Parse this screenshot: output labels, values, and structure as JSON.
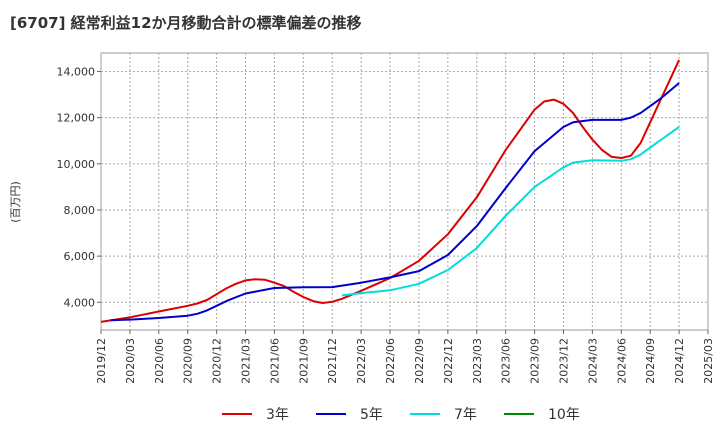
{
  "chart_data": {
    "type": "line",
    "title": "[6707]  経常利益12か月移動合計の標準偏差の推移",
    "ylabel": "(百万円)",
    "xlabel": "",
    "ylim": [
      2800,
      14800
    ],
    "yticks": [
      4000,
      6000,
      8000,
      10000,
      12000,
      14000
    ],
    "ytick_labels": [
      "4,000",
      "6,000",
      "8,000",
      "10,000",
      "12,000",
      "14,000"
    ],
    "xlim": [
      "2019-12",
      "2025-03"
    ],
    "xtick_labels": [
      "2019/12",
      "2020/03",
      "2020/06",
      "2020/09",
      "2020/12",
      "2021/03",
      "2021/06",
      "2021/09",
      "2021/12",
      "2022/03",
      "2022/06",
      "2022/09",
      "2022/12",
      "2023/03",
      "2023/06",
      "2023/09",
      "2023/12",
      "2024/03",
      "2024/06",
      "2024/09",
      "2024/12",
      "2025/03"
    ],
    "grid": true,
    "legend_position": "bottom",
    "series": [
      {
        "name": "3年",
        "color": "#dd0000",
        "points": [
          [
            "2019-12",
            3150
          ],
          [
            "2020-03",
            3350
          ],
          [
            "2020-06",
            3600
          ],
          [
            "2020-09",
            3850
          ],
          [
            "2020-10",
            3950
          ],
          [
            "2020-11",
            4100
          ],
          [
            "2020-12",
            4350
          ],
          [
            "2021-01",
            4600
          ],
          [
            "2021-02",
            4800
          ],
          [
            "2021-03",
            4950
          ],
          [
            "2021-04",
            5000
          ],
          [
            "2021-05",
            4980
          ],
          [
            "2021-06",
            4850
          ],
          [
            "2021-07",
            4700
          ],
          [
            "2021-08",
            4450
          ],
          [
            "2021-09",
            4230
          ],
          [
            "2021-10",
            4050
          ],
          [
            "2021-11",
            3970
          ],
          [
            "2021-12",
            4020
          ],
          [
            "2022-01",
            4150
          ],
          [
            "2022-03",
            4500
          ],
          [
            "2022-06",
            5050
          ],
          [
            "2022-09",
            5800
          ],
          [
            "2022-12",
            6950
          ],
          [
            "2023-03",
            8550
          ],
          [
            "2023-06",
            10600
          ],
          [
            "2023-09",
            12350
          ],
          [
            "2023-10",
            12700
          ],
          [
            "2023-11",
            12780
          ],
          [
            "2023-12",
            12600
          ],
          [
            "2024-01",
            12200
          ],
          [
            "2024-02",
            11600
          ],
          [
            "2024-03",
            11050
          ],
          [
            "2024-04",
            10600
          ],
          [
            "2024-05",
            10300
          ],
          [
            "2024-06",
            10250
          ],
          [
            "2024-07",
            10350
          ],
          [
            "2024-08",
            10900
          ],
          [
            "2024-09",
            11800
          ],
          [
            "2024-10",
            12700
          ],
          [
            "2024-11",
            13600
          ],
          [
            "2024-12",
            14500
          ]
        ]
      },
      {
        "name": "5年",
        "color": "#0000cc",
        "points": [
          [
            "2020-01",
            3220
          ],
          [
            "2020-03",
            3250
          ],
          [
            "2020-06",
            3320
          ],
          [
            "2020-09",
            3420
          ],
          [
            "2020-10",
            3500
          ],
          [
            "2020-11",
            3650
          ],
          [
            "2020-12",
            3850
          ],
          [
            "2021-01",
            4050
          ],
          [
            "2021-03",
            4380
          ],
          [
            "2021-06",
            4620
          ],
          [
            "2021-09",
            4650
          ],
          [
            "2021-12",
            4660
          ],
          [
            "2022-03",
            4850
          ],
          [
            "2022-06",
            5080
          ],
          [
            "2022-09",
            5350
          ],
          [
            "2022-12",
            6050
          ],
          [
            "2023-03",
            7300
          ],
          [
            "2023-06",
            8950
          ],
          [
            "2023-09",
            10550
          ],
          [
            "2023-12",
            11600
          ],
          [
            "2024-01",
            11800
          ],
          [
            "2024-03",
            11900
          ],
          [
            "2024-06",
            11900
          ],
          [
            "2024-07",
            12000
          ],
          [
            "2024-08",
            12200
          ],
          [
            "2024-09",
            12500
          ],
          [
            "2024-10",
            12800
          ],
          [
            "2024-11",
            13150
          ],
          [
            "2024-12",
            13500
          ]
        ]
      },
      {
        "name": "7年",
        "color": "#00dddd",
        "points": [
          [
            "2022-01",
            4300
          ],
          [
            "2022-03",
            4400
          ],
          [
            "2022-06",
            4520
          ],
          [
            "2022-09",
            4800
          ],
          [
            "2022-12",
            5400
          ],
          [
            "2023-03",
            6350
          ],
          [
            "2023-06",
            7750
          ],
          [
            "2023-09",
            9000
          ],
          [
            "2023-12",
            9850
          ],
          [
            "2024-01",
            10050
          ],
          [
            "2024-03",
            10150
          ],
          [
            "2024-06",
            10130
          ],
          [
            "2024-07",
            10200
          ],
          [
            "2024-08",
            10400
          ],
          [
            "2024-09",
            10700
          ],
          [
            "2024-10",
            11000
          ],
          [
            "2024-11",
            11300
          ],
          [
            "2024-12",
            11600
          ]
        ]
      },
      {
        "name": "10年",
        "color": "#008800",
        "points": []
      }
    ]
  }
}
